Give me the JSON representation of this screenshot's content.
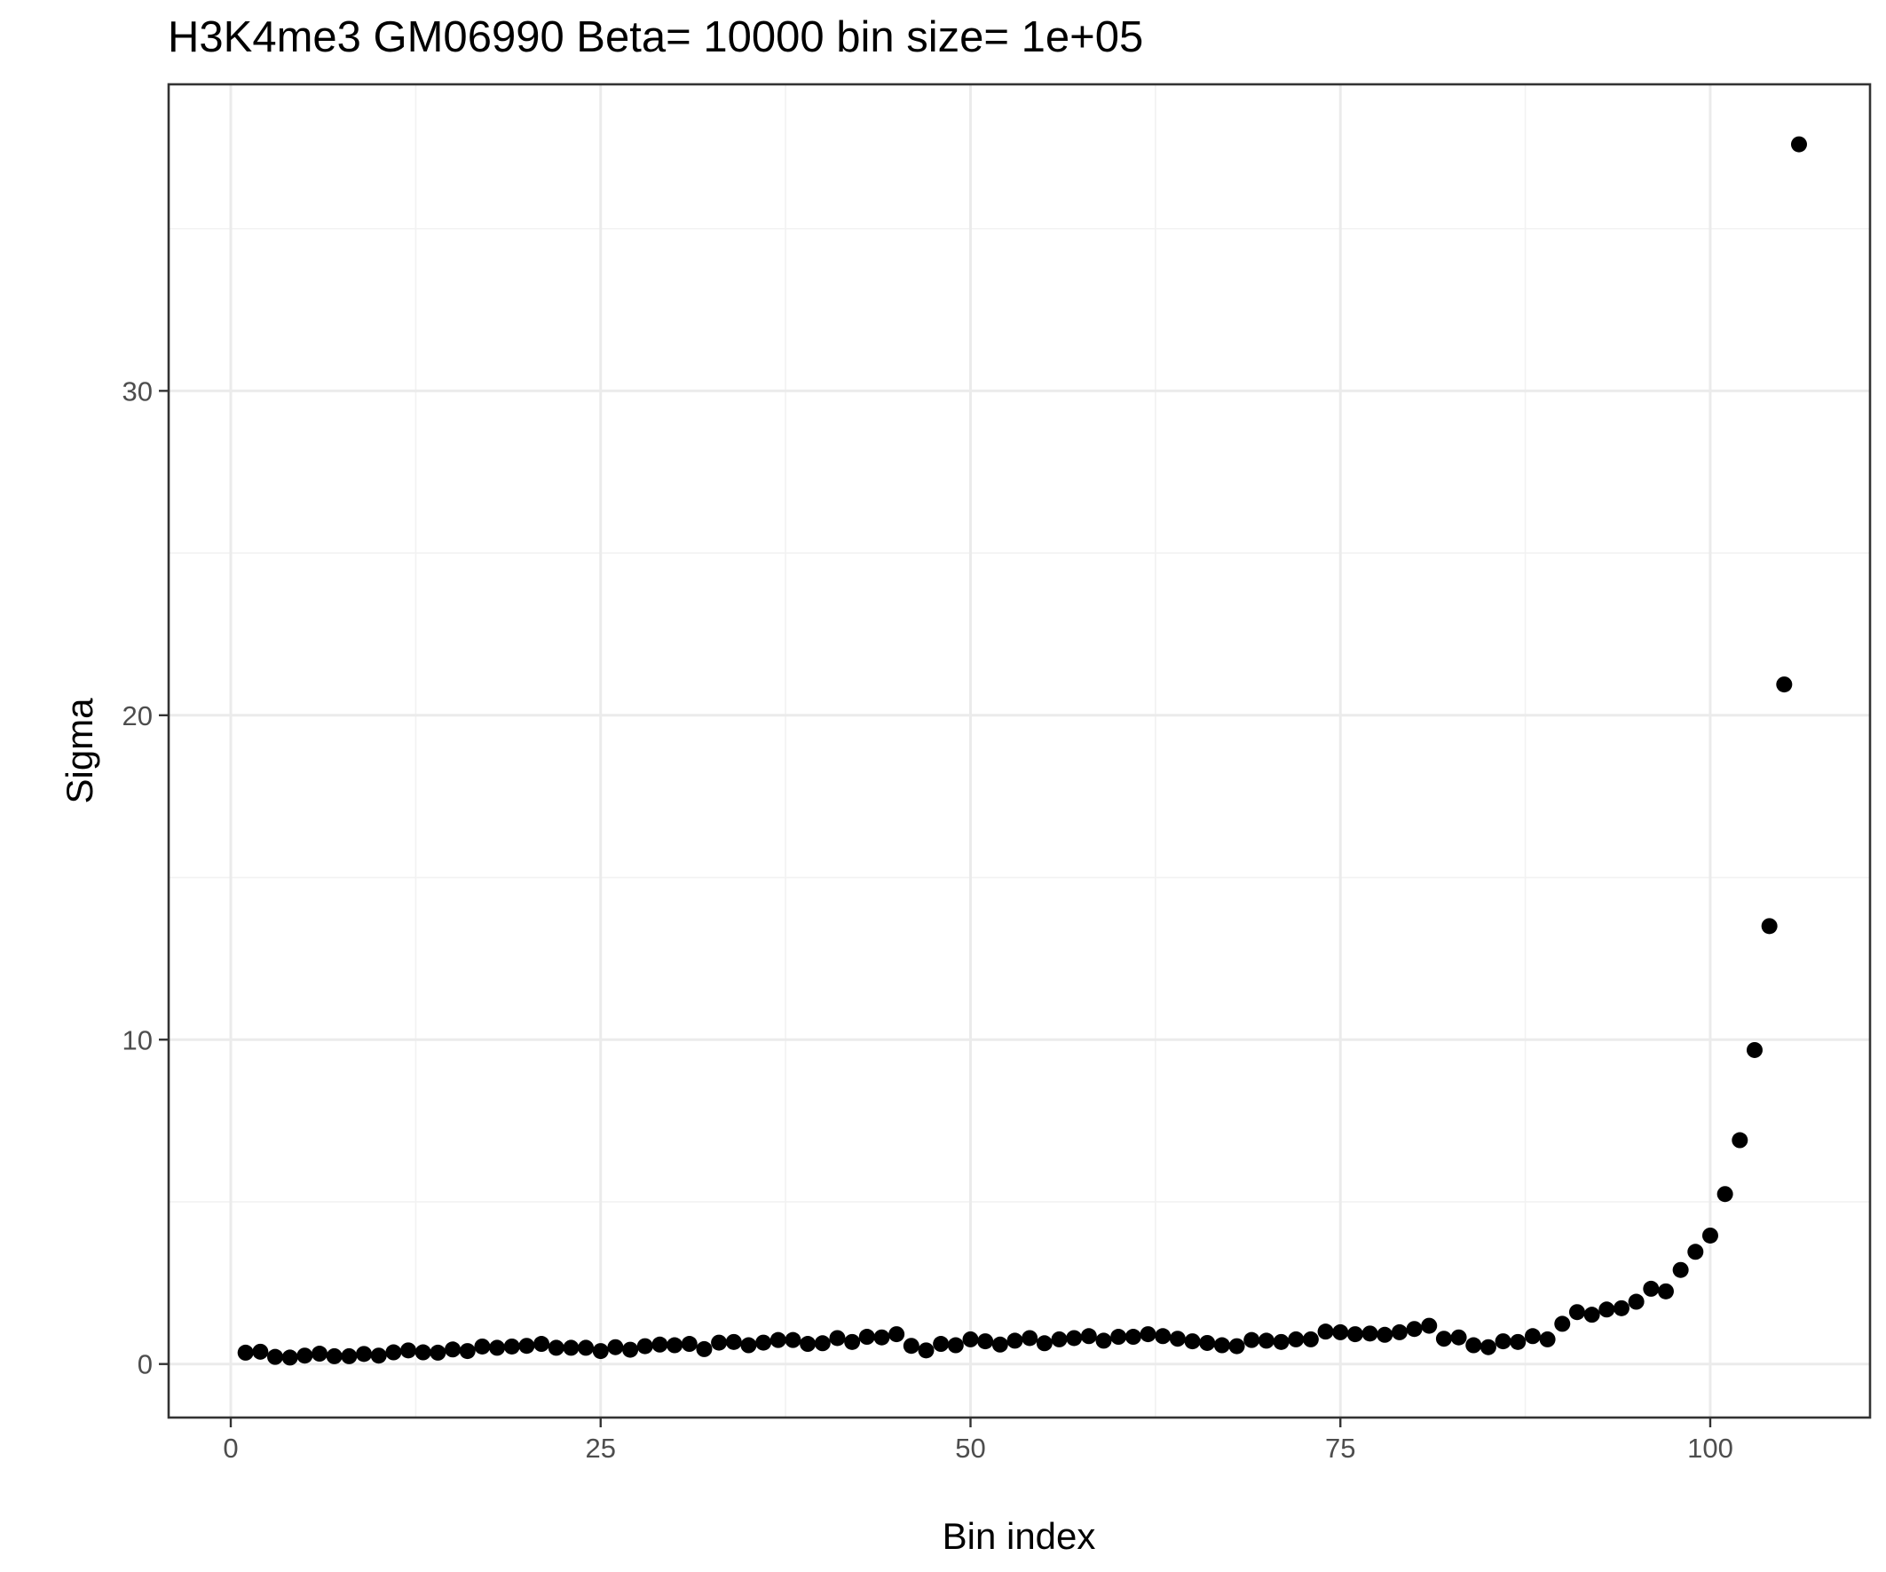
{
  "chart_data": {
    "type": "scatter",
    "title": "H3K4me3 GM06990  Beta=  10000  bin size=  1e+05",
    "xlabel": "Bin index",
    "ylabel": "Sigma",
    "xlim": [
      -4.2,
      110.8
    ],
    "ylim": [
      -1.65,
      39.45
    ],
    "x_ticks": [
      0,
      25,
      50,
      75,
      100
    ],
    "y_ticks": [
      0,
      10,
      20,
      30
    ],
    "x_minor": [
      12.5,
      37.5,
      62.5,
      87.5
    ],
    "y_minor": [
      5,
      15,
      25,
      35
    ],
    "grid": true,
    "legend": "none",
    "point_color": "#000000",
    "series": [
      {
        "x": [
          1,
          2,
          3,
          4,
          5,
          6,
          7,
          8,
          9,
          10,
          11,
          12,
          13,
          14,
          15,
          16,
          17,
          18,
          19,
          20,
          21,
          22,
          23,
          24,
          25,
          26,
          27,
          28,
          29,
          30,
          31,
          32,
          33,
          34,
          35,
          36,
          37,
          38,
          39,
          40,
          41,
          42,
          43,
          44,
          45,
          46,
          47,
          48,
          49,
          50,
          51,
          52,
          53,
          54,
          55,
          56,
          57,
          58,
          59,
          60,
          61,
          62,
          63,
          64,
          65,
          66,
          67,
          68,
          69,
          70,
          71,
          72,
          73,
          74,
          75,
          76,
          77,
          78,
          79,
          80,
          81,
          82,
          83,
          84,
          85,
          86,
          87,
          88,
          89,
          90,
          91,
          92,
          93,
          94,
          95,
          96,
          97,
          98,
          99,
          100,
          101,
          102,
          103,
          104,
          105,
          106
        ],
        "y": [
          0.35,
          0.38,
          0.22,
          0.2,
          0.26,
          0.32,
          0.24,
          0.24,
          0.31,
          0.26,
          0.36,
          0.42,
          0.36,
          0.35,
          0.45,
          0.4,
          0.54,
          0.5,
          0.54,
          0.56,
          0.62,
          0.5,
          0.5,
          0.5,
          0.4,
          0.52,
          0.44,
          0.55,
          0.6,
          0.58,
          0.62,
          0.46,
          0.66,
          0.68,
          0.58,
          0.66,
          0.74,
          0.74,
          0.62,
          0.64,
          0.8,
          0.68,
          0.84,
          0.82,
          0.92,
          0.56,
          0.42,
          0.62,
          0.58,
          0.76,
          0.7,
          0.6,
          0.72,
          0.8,
          0.64,
          0.76,
          0.8,
          0.86,
          0.72,
          0.84,
          0.84,
          0.92,
          0.86,
          0.78,
          0.7,
          0.65,
          0.58,
          0.55,
          0.74,
          0.72,
          0.68,
          0.76,
          0.76,
          1.0,
          0.98,
          0.92,
          0.94,
          0.9,
          0.98,
          1.08,
          1.18,
          0.78,
          0.82,
          0.58,
          0.52,
          0.7,
          0.68,
          0.86,
          0.76,
          1.24,
          1.6,
          1.52,
          1.68,
          1.72,
          1.92,
          2.32,
          2.24,
          2.9,
          3.46,
          3.96,
          5.24,
          6.9,
          9.68,
          13.5,
          20.95,
          37.6
        ]
      }
    ]
  }
}
